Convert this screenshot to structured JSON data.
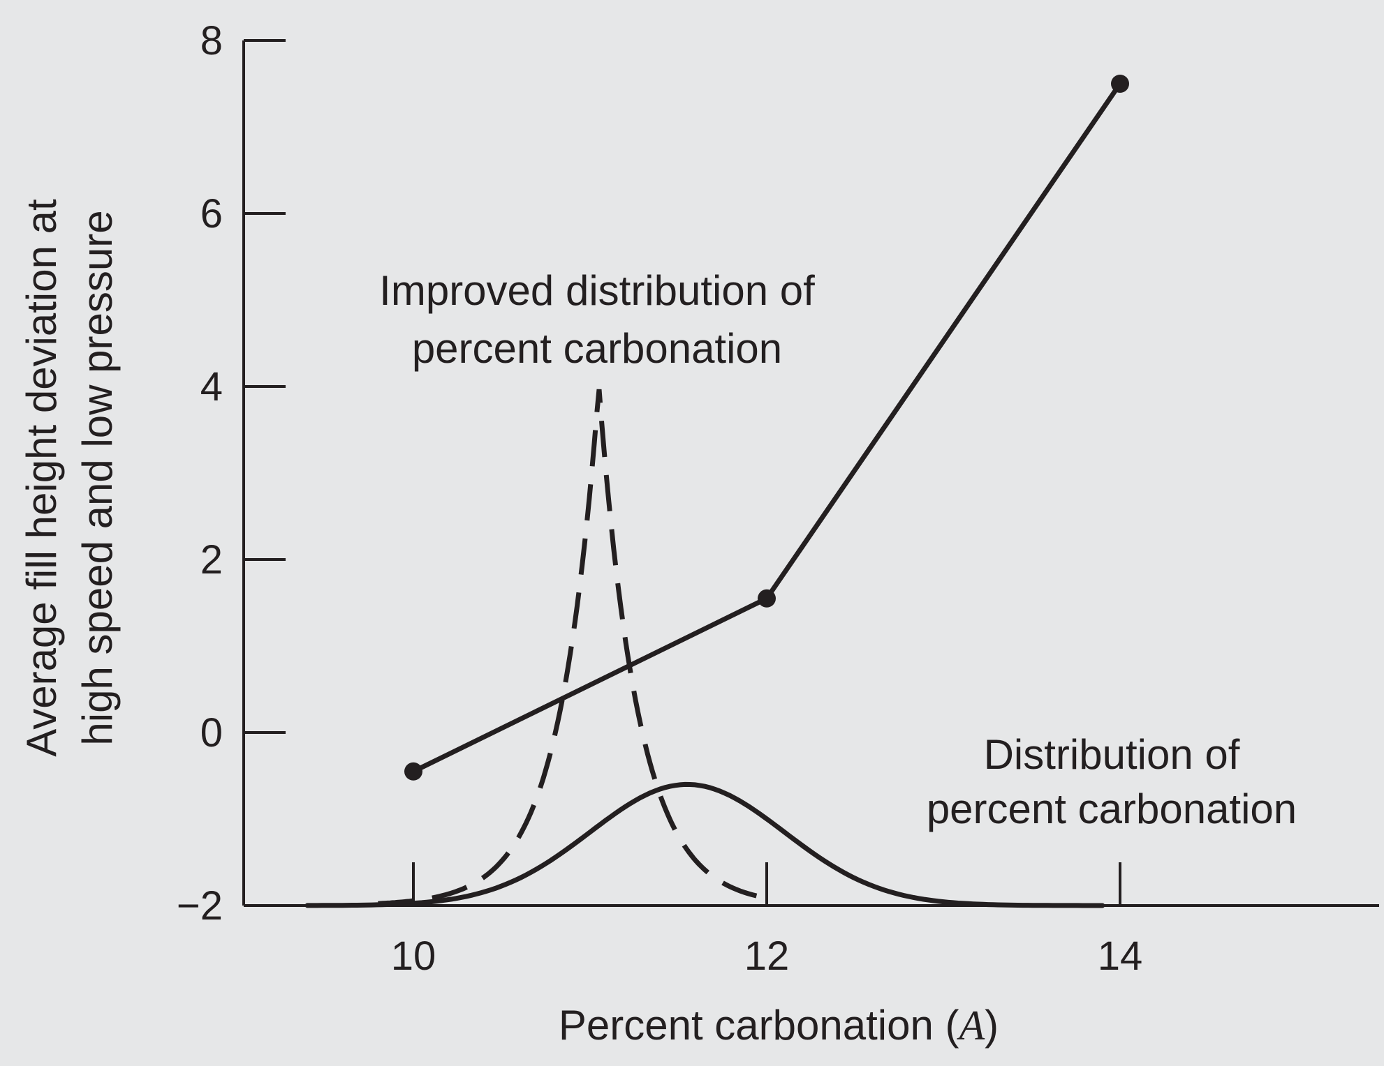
{
  "chart_data": {
    "type": "line",
    "title": "",
    "xlabel": "Percent carbonation (A)",
    "xlabel_text": "Percent carbonation (",
    "xlabel_var": "A",
    "xlabel_close": ")",
    "ylabel_lines": [
      "Average fill height deviation at",
      "high speed and low pressure"
    ],
    "xlim": [
      9.0,
      15.5
    ],
    "ylim": [
      -2,
      8
    ],
    "x_ticks": [
      10,
      12,
      14
    ],
    "x_tick_labels": [
      "10",
      "12",
      "14"
    ],
    "y_ticks": [
      -2,
      0,
      2,
      4,
      6,
      8
    ],
    "y_tick_labels": [
      "−2",
      "0",
      "2",
      "4",
      "6",
      "8"
    ],
    "grid": false,
    "series": [
      {
        "style": "solid-with-markers",
        "x": [
          10,
          12,
          14
        ],
        "y": [
          -0.45,
          1.55,
          7.5
        ]
      }
    ],
    "distributions": [
      {
        "style": "solid",
        "label_lines": [
          "Distribution of",
          "percent carbonation"
        ],
        "center": 11.55,
        "spread": 0.55,
        "peak": -0.6,
        "x_range": [
          9.4,
          13.9
        ]
      },
      {
        "style": "dashed",
        "label_lines": [
          "Improved distribution of",
          "percent carbonation"
        ],
        "center": 11.05,
        "spread": 0.14,
        "peak": 4.0,
        "x_range": [
          9.8,
          12.0
        ]
      }
    ],
    "colors": {
      "ink": "#231f20",
      "background": "#e6e7e8"
    }
  }
}
